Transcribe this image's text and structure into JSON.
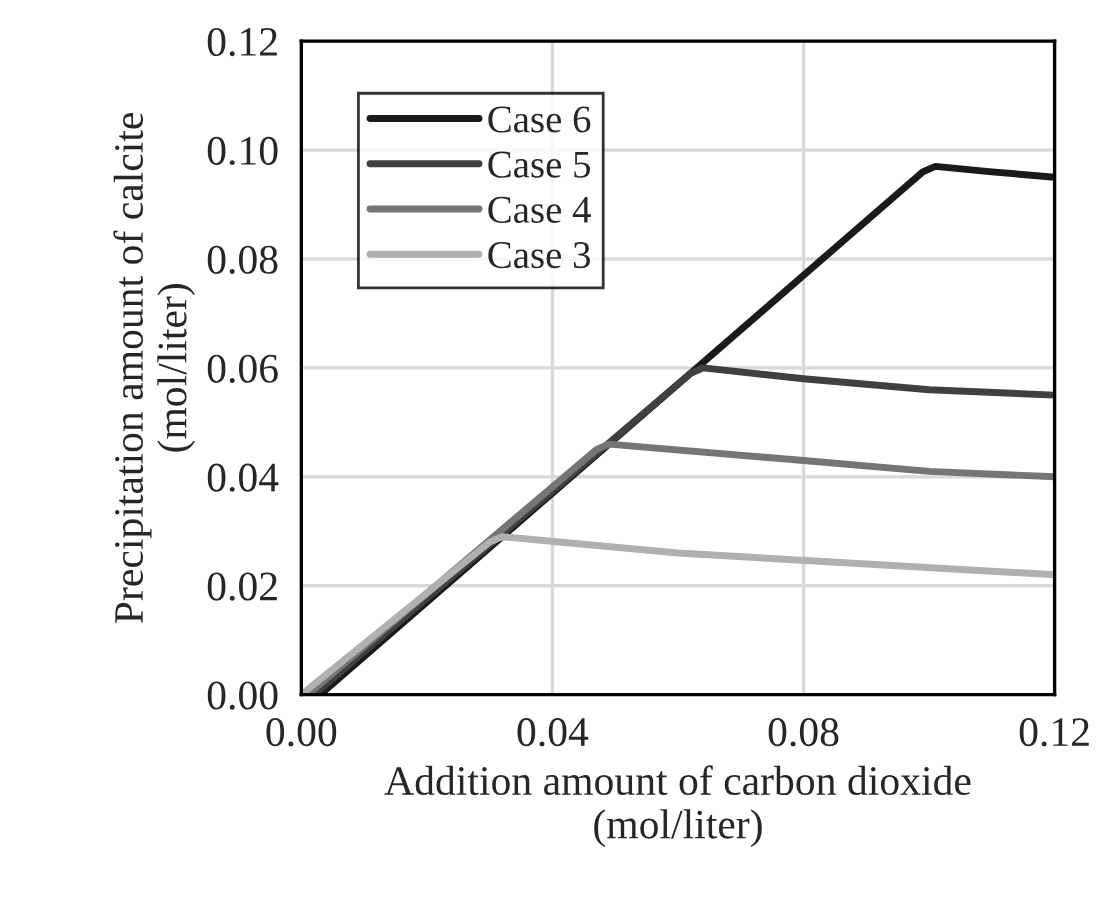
{
  "chart_data": {
    "type": "line",
    "xlabel": "Addition amount of carbon dioxide\n(mol/liter)",
    "ylabel": "Precipitation amount of calcite\n(mol/liter)",
    "xlim": [
      0,
      0.12
    ],
    "xticks": [
      {
        "value": 0,
        "label": "0.00"
      },
      {
        "value": 0.04,
        "label": "0.04"
      },
      {
        "value": 0.08,
        "label": "0.08"
      },
      {
        "value": 0.12,
        "label": "0.12"
      }
    ],
    "ylim": [
      0,
      0.12
    ],
    "yticks": [
      {
        "value": 0,
        "label": "0.00"
      },
      {
        "value": 0.02,
        "label": "0.02"
      },
      {
        "value": 0.04,
        "label": "0.04"
      },
      {
        "value": 0.06,
        "label": "0.06"
      },
      {
        "value": 0.08,
        "label": "0.08"
      },
      {
        "value": 0.1,
        "label": "0.10"
      },
      {
        "value": 0.12,
        "label": "0.12"
      }
    ],
    "grid": true,
    "legend": "top left",
    "marker": "none",
    "line_style": "solid",
    "series": [
      {
        "name": "Case 6",
        "color": "#1a1a1a",
        "x": [
          0.003,
          0.099,
          0.101,
          0.11,
          0.12
        ],
        "values": [
          0,
          0.096,
          0.097,
          0.096,
          0.095
        ]
      },
      {
        "name": "Case 5",
        "color": "#404040",
        "x": [
          0.002,
          0.062,
          0.064,
          0.08,
          0.1,
          0.12
        ],
        "values": [
          0,
          0.059,
          0.06,
          0.058,
          0.056,
          0.055
        ]
      },
      {
        "name": "Case 4",
        "color": "#757575",
        "x": [
          0.001,
          0.047,
          0.049,
          0.08,
          0.1,
          0.12
        ],
        "values": [
          0,
          0.045,
          0.046,
          0.043,
          0.041,
          0.04
        ]
      },
      {
        "name": "Case 3",
        "color": "#b0b0b0",
        "x": [
          0,
          0.03,
          0.032,
          0.06,
          0.09,
          0.12
        ],
        "values": [
          0,
          0.028,
          0.029,
          0.026,
          0.024,
          0.022
        ]
      }
    ]
  }
}
